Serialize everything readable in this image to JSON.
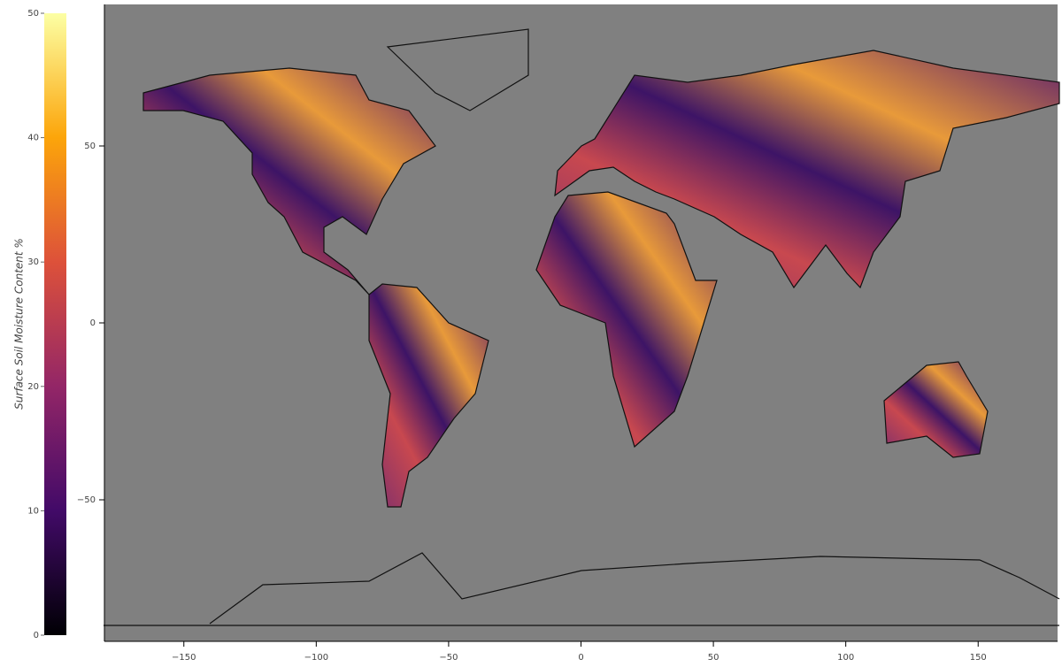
{
  "chart_data": {
    "type": "map",
    "colorbar": {
      "label": "Surface Soil Moisture Content %",
      "lim": [
        0,
        50
      ],
      "ticks": [
        0,
        10,
        20,
        30,
        40,
        50
      ],
      "colormap": [
        "#000004",
        "#420a68",
        "#932667",
        "#dd513a",
        "#fca50a",
        "#fcffa4"
      ]
    },
    "xlim": [
      -180,
      180
    ],
    "xticks": [
      {
        "value": -150,
        "label": "−150"
      },
      {
        "value": -100,
        "label": "−100"
      },
      {
        "value": -50,
        "label": "−50"
      },
      0,
      50,
      100,
      150
    ],
    "ylim": [
      -90,
      90
    ],
    "yticks": [
      {
        "value": -50,
        "label": "−50"
      },
      0,
      50
    ],
    "background": "#808080"
  }
}
